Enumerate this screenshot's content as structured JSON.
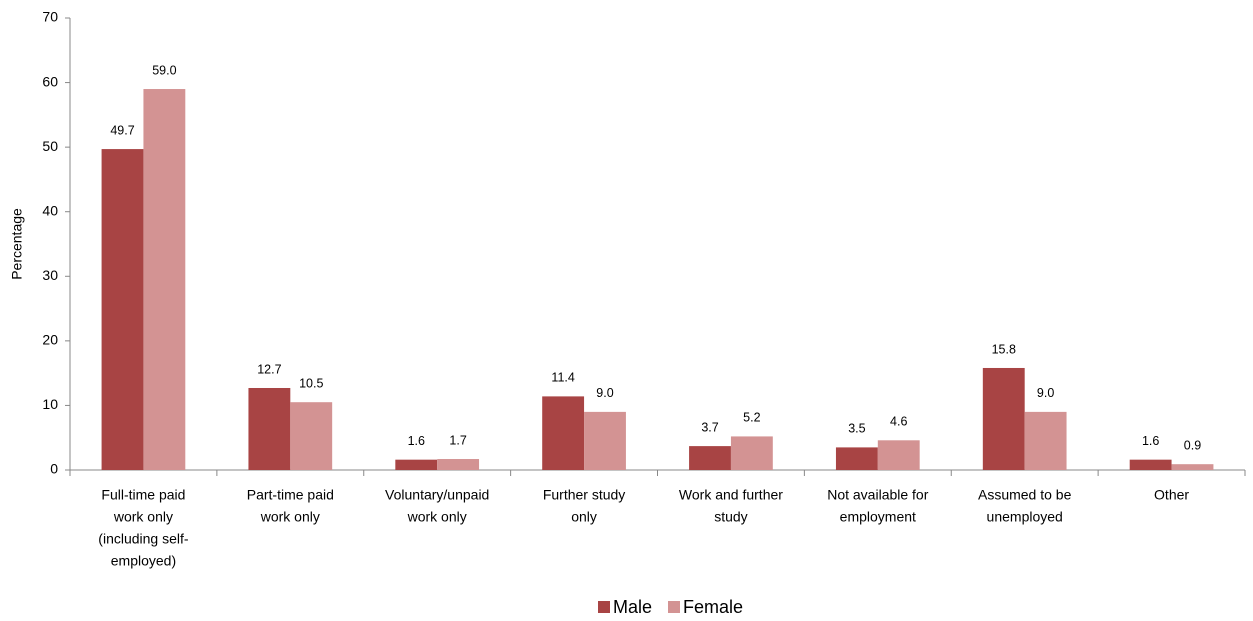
{
  "chart_data": {
    "type": "bar",
    "y_label": "Percentage",
    "categories": [
      [
        "Full-time paid",
        "work only",
        "(including self-",
        "employed)"
      ],
      [
        "Part-time paid",
        "work only"
      ],
      [
        "Voluntary/unpaid",
        "work only"
      ],
      [
        "Further study",
        "only"
      ],
      [
        "Work and further",
        "study"
      ],
      [
        "Not available for",
        "employment"
      ],
      [
        "Assumed to be",
        "unemployed"
      ],
      [
        "Other"
      ]
    ],
    "series": [
      {
        "name": "Male",
        "color": "#a84444",
        "values": [
          49.7,
          12.7,
          1.6,
          11.4,
          3.7,
          3.5,
          15.8,
          1.6
        ],
        "value_labels": [
          "49.7",
          "12.7",
          "1.6",
          "11.4",
          "3.7",
          "3.5",
          "15.8",
          "1.6"
        ]
      },
      {
        "name": "Female",
        "color": "#d39393",
        "values": [
          59,
          10.5,
          1.7,
          9,
          5.2,
          4.6,
          9,
          0.9
        ],
        "value_labels": [
          "59.0",
          "10.5",
          "1.7",
          "9.0",
          "5.2",
          "4.6",
          "9.0",
          "0.9"
        ]
      }
    ],
    "ylim": [
      0,
      70
    ],
    "yticks": [
      0,
      10,
      20,
      30,
      40,
      50,
      60,
      70
    ],
    "legend": "bottom"
  }
}
